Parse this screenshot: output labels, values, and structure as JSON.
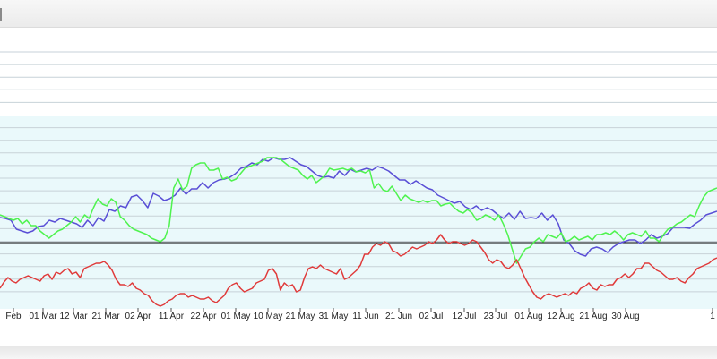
{
  "chart_data": {
    "type": "line",
    "title": "",
    "xlabel": "",
    "ylabel": "",
    "x_tick_labels": [
      "Feb",
      "01 Mar",
      "12 Mar",
      "21 Mar",
      "02 Apr",
      "11 Apr",
      "22 Apr",
      "01 May",
      "10 May",
      "21 May",
      "31 May",
      "11 Jun",
      "21 Jun",
      "02 Jul",
      "12 Jul",
      "23 Jul",
      "01 Aug",
      "12 Aug",
      "21 Aug",
      "30 Aug",
      "1"
    ],
    "grid": true,
    "legend": "none",
    "series": [
      {
        "color": "#5a4fd6",
        "values": [
          243,
          244,
          246,
          256,
          258,
          260,
          258,
          253,
          252,
          246,
          248,
          244,
          246,
          248,
          250,
          254,
          246,
          252,
          243,
          247,
          234,
          236,
          230,
          232,
          220,
          218,
          224,
          232,
          216,
          219,
          224,
          222,
          218,
          210,
          217,
          211,
          211,
          204,
          210,
          204,
          201,
          200,
          198,
          194,
          188,
          186,
          182,
          184,
          178,
          180,
          176,
          178,
          178,
          176,
          180,
          184,
          186,
          191,
          196,
          198,
          197,
          199,
          191,
          196,
          189,
          192,
          190,
          188,
          190,
          186,
          188,
          191,
          196,
          201,
          201,
          206,
          202,
          206,
          210,
          212,
          218,
          221,
          224,
          227,
          225,
          231,
          234,
          230,
          235,
          232,
          235,
          240,
          244,
          238,
          245,
          236,
          244,
          243,
          244,
          238,
          246,
          240,
          250,
          268,
          272,
          280,
          284,
          286,
          278,
          276,
          278,
          282,
          276,
          272,
          270,
          268,
          268,
          272,
          268,
          262,
          266,
          264,
          261,
          254,
          254,
          254,
          255,
          250,
          246,
          240,
          238,
          236
        ]
      },
      {
        "color": "#4ff34f",
        "values": [
          240,
          242,
          244,
          246,
          244,
          250,
          246,
          252,
          252,
          258,
          262,
          266,
          262,
          258,
          256,
          252,
          248,
          242,
          248,
          240,
          244,
          232,
          222,
          228,
          230,
          222,
          226,
          242,
          246,
          252,
          256,
          258,
          260,
          262,
          266,
          268,
          270,
          266,
          252,
          210,
          200,
          212,
          208,
          188,
          184,
          182,
          182,
          190,
          190,
          188,
          200,
          198,
          202,
          200,
          194,
          188,
          186,
          184,
          182,
          180,
          176,
          176,
          176,
          178,
          182,
          186,
          188,
          190,
          196,
          200,
          196,
          204,
          200,
          196,
          188,
          190,
          189,
          188,
          190,
          188,
          192,
          191,
          193,
          190,
          210,
          205,
          212,
          214,
          208,
          216,
          224,
          218,
          222,
          224,
          226,
          224,
          226,
          224,
          224,
          230,
          228,
          227,
          232,
          236,
          238,
          234,
          238,
          246,
          244,
          240,
          242,
          246,
          240,
          250,
          262,
          278,
          294,
          286,
          278,
          276,
          270,
          266,
          270,
          262,
          264,
          266,
          260,
          270,
          268,
          264,
          268,
          266,
          264,
          268,
          262,
          262,
          260,
          262,
          258,
          262,
          268,
          262,
          260,
          262,
          264,
          258,
          266,
          266,
          270,
          262,
          256,
          254,
          250,
          248,
          244,
          240,
          242,
          230,
          220,
          214,
          212,
          210
        ]
      },
      {
        "color": "#e03a3a",
        "values": [
          322,
          315,
          310,
          314,
          316,
          312,
          310,
          308,
          310,
          312,
          314,
          308,
          306,
          312,
          304,
          306,
          302,
          300,
          306,
          304,
          310,
          300,
          298,
          296,
          294,
          294,
          292,
          296,
          302,
          312,
          318,
          318,
          320,
          316,
          322,
          324,
          328,
          330,
          336,
          340,
          342,
          340,
          336,
          334,
          330,
          328,
          328,
          332,
          330,
          332,
          334,
          334,
          332,
          336,
          338,
          334,
          330,
          322,
          318,
          316,
          322,
          326,
          324,
          322,
          316,
          314,
          312,
          302,
          300,
          306,
          324,
          316,
          320,
          318,
          326,
          324,
          310,
          300,
          298,
          300,
          296,
          300,
          302,
          304,
          306,
          300,
          312,
          310,
          306,
          302,
          296,
          284,
          284,
          276,
          272,
          274,
          270,
          272,
          280,
          282,
          286,
          284,
          280,
          276,
          278,
          276,
          274,
          270,
          272,
          268,
          262,
          268,
          272,
          270,
          270,
          272,
          274,
          272,
          268,
          270,
          276,
          282,
          290,
          294,
          290,
          292,
          298,
          300,
          296,
          290,
          300,
          310,
          318,
          326,
          332,
          334,
          330,
          328,
          330,
          332,
          330,
          328,
          330,
          326,
          328,
          322,
          320,
          316,
          322,
          324,
          318,
          320,
          318,
          318,
          312,
          310,
          306,
          310,
          306,
          300,
          300,
          294,
          294,
          298,
          302,
          304,
          308,
          312,
          312,
          310,
          314,
          316,
          310,
          306,
          300,
          298,
          296,
          294,
          290,
          288
        ]
      }
    ],
    "reference_line": {
      "color": "#000000"
    }
  }
}
